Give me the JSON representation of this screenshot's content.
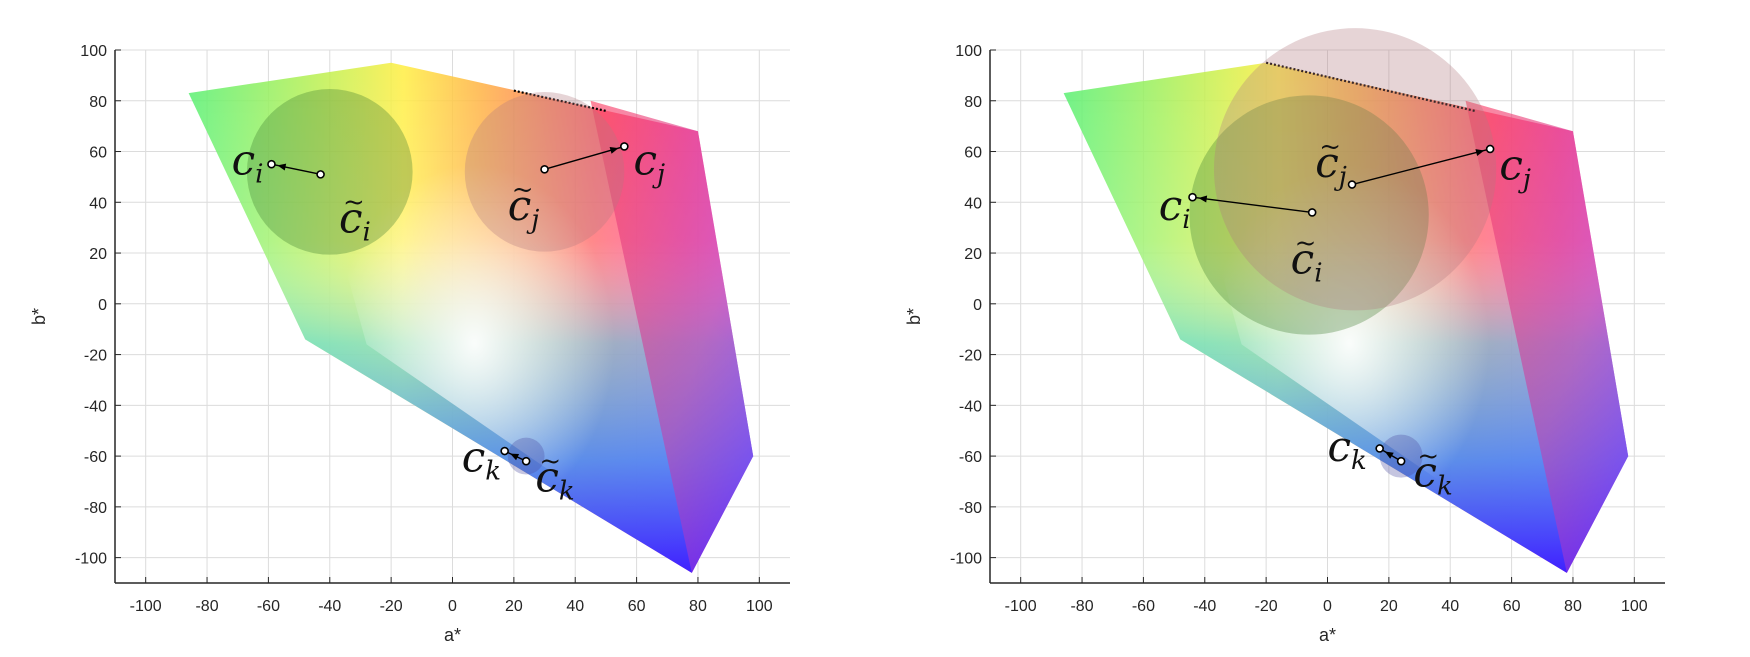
{
  "chart_data": [
    {
      "type": "scatter",
      "title": "",
      "xlabel": "a*",
      "ylabel": "b*",
      "xlim": [
        -110,
        110
      ],
      "ylim": [
        -110,
        100
      ],
      "xticks": [
        -100,
        -80,
        -60,
        -40,
        -20,
        0,
        20,
        40,
        60,
        80,
        100
      ],
      "yticks": [
        100,
        80,
        60,
        40,
        20,
        0,
        -20,
        -40,
        -60,
        -80,
        -100
      ],
      "xtick_labels": [
        "-100",
        "-80",
        "-60",
        "-40",
        "-20",
        "0",
        "20",
        "40",
        "60",
        "80",
        "100"
      ],
      "ytick_labels": [
        "100",
        "80",
        "60",
        "40",
        "20",
        "0",
        "-20",
        "-40",
        "-60",
        "-80",
        "-100"
      ],
      "grid": true,
      "gamut_outer": [
        [
          -86,
          83
        ],
        [
          -20,
          95
        ],
        [
          80,
          68
        ],
        [
          98,
          -60
        ],
        [
          78,
          -106
        ],
        [
          -48,
          -14
        ]
      ],
      "gamut_inner": [
        [
          -50,
          80
        ],
        [
          -20,
          95
        ],
        [
          45,
          80
        ],
        [
          80,
          -106
        ],
        [
          -28,
          -16
        ]
      ],
      "boundary_segment": [
        [
          20,
          84
        ],
        [
          50,
          76
        ]
      ],
      "circles": [
        {
          "name": "i",
          "center": [
            -40,
            52
          ],
          "radius": 27,
          "color": "#3a7a2a"
        },
        {
          "name": "j",
          "center": [
            30,
            52
          ],
          "radius": 26,
          "color": "#b07a80"
        },
        {
          "name": "k",
          "center": [
            24,
            -60
          ],
          "radius": 6,
          "color": "#4a4aa0"
        }
      ],
      "arrows": [
        {
          "name": "i",
          "from": [
            -43,
            51
          ],
          "to": [
            -59,
            55
          ]
        },
        {
          "name": "j",
          "from": [
            30,
            53
          ],
          "to": [
            56,
            62
          ]
        },
        {
          "name": "k",
          "from": [
            24,
            -62
          ],
          "to": [
            17,
            -58
          ]
        }
      ],
      "labels": [
        {
          "name": "c-i",
          "base": "c",
          "sub": "i",
          "tilde": "",
          "at": [
            -72,
            51
          ]
        },
        {
          "name": "c-tilde-i",
          "base": "c",
          "sub": "i",
          "tilde": "~",
          "at": [
            -37,
            28
          ]
        },
        {
          "name": "c-j",
          "base": "c",
          "sub": "j",
          "tilde": "",
          "at": [
            59,
            51
          ]
        },
        {
          "name": "c-tilde-j",
          "base": "c",
          "sub": "j",
          "tilde": "~",
          "at": [
            18,
            33
          ]
        },
        {
          "name": "c-k",
          "base": "c",
          "sub": "k",
          "tilde": "",
          "at": [
            3,
            -66
          ]
        },
        {
          "name": "c-tilde-k",
          "base": "c",
          "sub": "k",
          "tilde": "~",
          "at": [
            27,
            -74
          ]
        }
      ]
    },
    {
      "type": "scatter",
      "title": "",
      "xlabel": "a*",
      "ylabel": "b*",
      "xlim": [
        -110,
        110
      ],
      "ylim": [
        -110,
        100
      ],
      "xticks": [
        -100,
        -80,
        -60,
        -40,
        -20,
        0,
        20,
        40,
        60,
        80,
        100
      ],
      "yticks": [
        100,
        80,
        60,
        40,
        20,
        0,
        -20,
        -40,
        -60,
        -80,
        -100
      ],
      "xtick_labels": [
        "-100",
        "-80",
        "-60",
        "-40",
        "-20",
        "0",
        "20",
        "40",
        "60",
        "80",
        "100"
      ],
      "ytick_labels": [
        "100",
        "80",
        "60",
        "40",
        "20",
        "0",
        "-20",
        "-40",
        "-60",
        "-80",
        "-100"
      ],
      "grid": true,
      "gamut_outer": [
        [
          -86,
          83
        ],
        [
          -20,
          95
        ],
        [
          80,
          68
        ],
        [
          98,
          -60
        ],
        [
          78,
          -106
        ],
        [
          -48,
          -14
        ]
      ],
      "gamut_inner": [
        [
          -50,
          80
        ],
        [
          -20,
          95
        ],
        [
          45,
          80
        ],
        [
          80,
          -106
        ],
        [
          -28,
          -16
        ]
      ],
      "boundary_segment": [
        [
          -20,
          95
        ],
        [
          48,
          76
        ]
      ],
      "circles": [
        {
          "name": "i",
          "center": [
            -6,
            35
          ],
          "radius": 39,
          "color": "#3a7a2a"
        },
        {
          "name": "j",
          "center": [
            9,
            53
          ],
          "radius": 46,
          "color": "#b07a80"
        },
        {
          "name": "k",
          "center": [
            24,
            -60
          ],
          "radius": 7,
          "color": "#4a4aa0"
        }
      ],
      "arrows": [
        {
          "name": "i",
          "from": [
            -5,
            36
          ],
          "to": [
            -44,
            42
          ]
        },
        {
          "name": "j",
          "from": [
            8,
            47
          ],
          "to": [
            53,
            61
          ]
        },
        {
          "name": "k",
          "from": [
            24,
            -62
          ],
          "to": [
            17,
            -57
          ]
        }
      ],
      "labels": [
        {
          "name": "c-i",
          "base": "c",
          "sub": "i",
          "tilde": "",
          "at": [
            -55,
            33
          ]
        },
        {
          "name": "c-tilde-i",
          "base": "c",
          "sub": "i",
          "tilde": "~",
          "at": [
            -12,
            12
          ]
        },
        {
          "name": "c-j",
          "base": "c",
          "sub": "j",
          "tilde": "",
          "at": [
            56,
            49
          ]
        },
        {
          "name": "c-tilde-j",
          "base": "c",
          "sub": "j",
          "tilde": "~",
          "at": [
            -4,
            50
          ]
        },
        {
          "name": "c-k",
          "base": "c",
          "sub": "k",
          "tilde": "",
          "at": [
            0,
            -62
          ]
        },
        {
          "name": "c-tilde-k",
          "base": "c",
          "sub": "k",
          "tilde": "~",
          "at": [
            28,
            -72
          ]
        }
      ]
    }
  ]
}
